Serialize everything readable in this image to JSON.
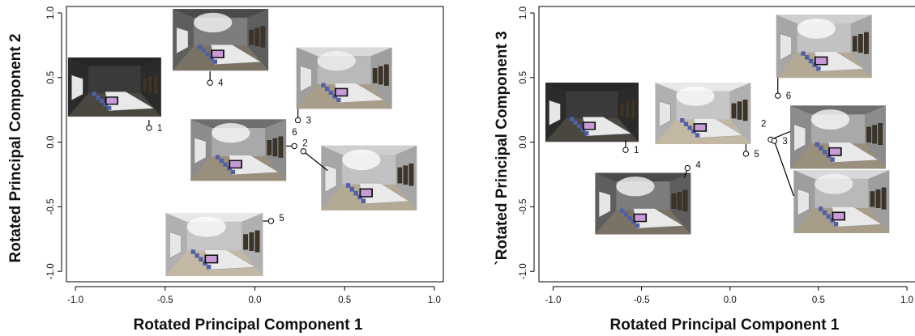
{
  "chart_data": [
    {
      "type": "scatter",
      "xlabel": "Rotated Principal Component 1",
      "ylabel": "Rotated Principal Component 2",
      "xlim": [
        -1.05,
        1.05
      ],
      "ylim": [
        -1.08,
        1.05
      ],
      "xticks": [
        "-1.0",
        "-0.5",
        "0.0",
        "0.5",
        "1.0"
      ],
      "yticks": [
        "-1.0",
        "-0.5",
        "0.0",
        "0.5",
        "1.0"
      ],
      "xtick_values": [
        -1.0,
        -0.5,
        0.0,
        0.5,
        1.0
      ],
      "ytick_values": [
        -1.0,
        -0.5,
        0.0,
        0.5,
        1.0
      ],
      "grid": false,
      "points": [
        {
          "label": "1",
          "x": -0.59,
          "y": 0.11,
          "light": "dark"
        },
        {
          "label": "2",
          "x": 0.22,
          "y": -0.03,
          "light": "mixed"
        },
        {
          "label": "3",
          "x": 0.24,
          "y": 0.17,
          "light": "walls"
        },
        {
          "label": "4",
          "x": -0.25,
          "y": 0.46,
          "light": "spot"
        },
        {
          "label": "5",
          "x": 0.09,
          "y": -0.61,
          "light": "ceiling"
        },
        {
          "label": "6",
          "x": 0.27,
          "y": -0.07,
          "light": "bright"
        }
      ]
    },
    {
      "type": "scatter",
      "xlabel": "Rotated Principal Component 1",
      "ylabel": "`Rotated Principal Component 3",
      "xlim": [
        -1.08,
        1.05
      ],
      "ylim": [
        -1.08,
        1.05
      ],
      "xticks": [
        "-1.0",
        "-0.5",
        "0.0",
        "0.5",
        "1.0"
      ],
      "yticks": [
        "-1.0",
        "-0.5",
        "0.0",
        "0.5",
        "1.0"
      ],
      "xtick_values": [
        -1.0,
        -0.5,
        0.0,
        0.5,
        1.0
      ],
      "ytick_values": [
        -1.0,
        -0.5,
        0.0,
        0.5,
        1.0
      ],
      "grid": false,
      "points": [
        {
          "label": "1",
          "x": -0.59,
          "y": -0.06,
          "light": "dark"
        },
        {
          "label": "2",
          "x": 0.23,
          "y": 0.02,
          "light": "mixed"
        },
        {
          "label": "3",
          "x": 0.25,
          "y": 0.01,
          "light": "walls"
        },
        {
          "label": "4",
          "x": -0.24,
          "y": -0.2,
          "light": "spot"
        },
        {
          "label": "5",
          "x": 0.09,
          "y": -0.09,
          "light": "ceiling"
        },
        {
          "label": "6",
          "x": 0.27,
          "y": 0.36,
          "light": "bright"
        }
      ]
    }
  ]
}
